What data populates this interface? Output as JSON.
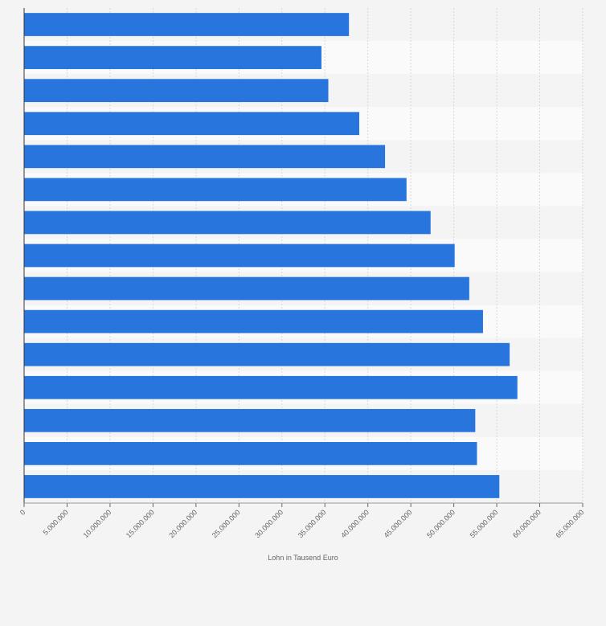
{
  "chart_data": {
    "type": "bar",
    "orientation": "horizontal",
    "x_label": "Lohn in Tausend Euro",
    "categories": [
      null,
      null,
      null,
      null,
      null,
      null,
      null,
      null,
      null,
      null,
      null,
      null,
      null,
      null,
      null
    ],
    "values": [
      37800000,
      34600000,
      35400000,
      39000000,
      42000000,
      44500000,
      47300000,
      50100000,
      51800000,
      53400000,
      56500000,
      57400000,
      52500000,
      52700000,
      55300000
    ],
    "color": "#2876dd",
    "xlim": [
      0,
      65000000
    ],
    "xticks": [
      0,
      {
        "value": 5000000,
        "label": "5.000.000"
      },
      {
        "value": 10000000,
        "label": "10.000.000"
      },
      {
        "value": 15000000,
        "label": "15.000.000"
      },
      {
        "value": 20000000,
        "label": "20.000.000"
      },
      {
        "value": 25000000,
        "label": "25.000.000"
      },
      {
        "value": 30000000,
        "label": "30.000.000"
      },
      {
        "value": 35000000,
        "label": "35.000.000"
      },
      {
        "value": 40000000,
        "label": "40.000.000"
      },
      {
        "value": 45000000,
        "label": "45.000.000"
      },
      {
        "value": 50000000,
        "label": "50.000.000"
      },
      {
        "value": 55000000,
        "label": "55.000.000"
      },
      {
        "value": 60000000,
        "label": "60.000.000"
      },
      {
        "value": 65000000,
        "label": "65.000.000"
      }
    ],
    "grid": true
  }
}
